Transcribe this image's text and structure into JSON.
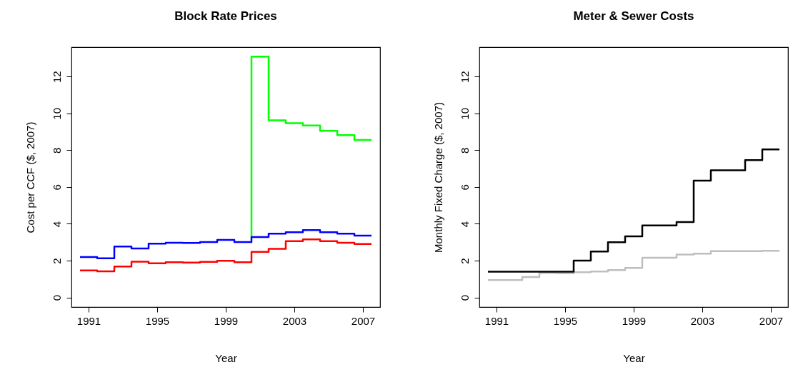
{
  "chart_data": [
    {
      "type": "step",
      "title": "Block Rate Prices",
      "xlabel": "Year",
      "ylabel": "Cost per CCF ($, 2007)",
      "x": [
        1990.5,
        1991.5,
        1992.5,
        1993.5,
        1994.5,
        1995.5,
        1996.5,
        1997.5,
        1998.5,
        1999.5,
        2000.5,
        2001.5,
        2002.5,
        2003.5,
        2004.5,
        2005.5,
        2006.5,
        2007.5
      ],
      "xlim": [
        1990,
        2008
      ],
      "xticks": [
        1991,
        1995,
        1999,
        2003,
        2007
      ],
      "ylim": [
        -0.52,
        13.6
      ],
      "yticks": [
        0,
        2,
        4,
        6,
        8,
        10,
        12
      ],
      "series": [
        {
          "color": "#00ff00",
          "x": [
            2000.5,
            2000.5,
            2001.5,
            2002.5,
            2003.5,
            2004.5,
            2005.5,
            2006.5,
            2007.5
          ],
          "values": [
            3.28,
            13.09,
            9.62,
            9.47,
            9.34,
            9.05,
            8.82,
            8.56,
            8.56
          ]
        },
        {
          "color": "#0000ff",
          "values": [
            2.2,
            2.13,
            2.77,
            2.66,
            2.92,
            2.97,
            2.96,
            3.01,
            3.13,
            3.01,
            3.28,
            3.47,
            3.54,
            3.66,
            3.54,
            3.47,
            3.36,
            3.36
          ]
        },
        {
          "color": "#ff0000",
          "values": [
            1.47,
            1.42,
            1.68,
            1.94,
            1.86,
            1.91,
            1.89,
            1.93,
            1.99,
            1.91,
            2.48,
            2.64,
            3.06,
            3.16,
            3.06,
            2.97,
            2.9,
            2.9
          ]
        }
      ]
    },
    {
      "type": "step",
      "title": "Meter & Sewer Costs",
      "xlabel": "Year",
      "ylabel": "Monthly Fixed Charge ($, 2007)",
      "x": [
        1990.5,
        1991.5,
        1992.5,
        1993.5,
        1994.5,
        1995.5,
        1996.5,
        1997.5,
        1998.5,
        1999.5,
        2000.5,
        2001.5,
        2002.5,
        2003.5,
        2004.5,
        2005.5,
        2006.5,
        2007.5
      ],
      "xlim": [
        1990,
        2008
      ],
      "xticks": [
        1991,
        1995,
        1999,
        2003,
        2007
      ],
      "ylim": [
        -0.52,
        13.6
      ],
      "yticks": [
        0,
        2,
        4,
        6,
        8,
        10,
        12
      ],
      "series": [
        {
          "color": "#bebebe",
          "values": [
            0.94,
            0.94,
            1.11,
            1.33,
            1.31,
            1.37,
            1.41,
            1.49,
            1.6,
            2.16,
            2.16,
            2.33,
            2.38,
            2.52,
            2.52,
            2.52,
            2.53,
            2.53
          ]
        },
        {
          "color": "#000000",
          "values": [
            1.4,
            1.4,
            1.4,
            1.4,
            1.4,
            2.0,
            2.5,
            3.0,
            3.32,
            3.91,
            3.91,
            4.1,
            6.35,
            6.91,
            6.91,
            7.46,
            8.04,
            8.04
          ]
        }
      ]
    }
  ]
}
